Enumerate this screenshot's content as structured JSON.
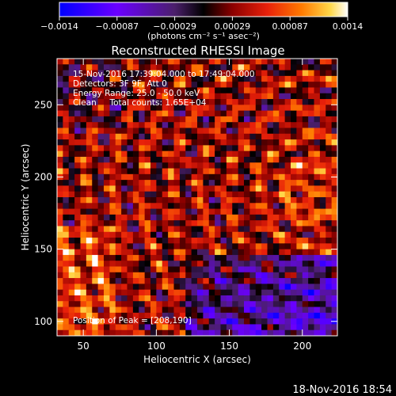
{
  "chart_data": {
    "type": "heatmap",
    "title": "Reconstructed RHESSI Image",
    "xlabel": "Heliocentric X (arcsec)",
    "ylabel": "Heliocentric Y (arcsec)",
    "xlim": [
      32,
      224
    ],
    "ylim": [
      90,
      282
    ],
    "x_ticks": [
      50,
      100,
      150,
      200
    ],
    "y_ticks": [
      100,
      150,
      200,
      250
    ],
    "colorbar": {
      "label": "(photons cm⁻² s⁻¹ asec⁻²)",
      "range": [
        -0.0014,
        0.0014
      ],
      "ticks": [
        "−0.0014",
        "−0.00087",
        "−0.00029",
        "0.00029",
        "0.00087",
        "0.0014"
      ],
      "colormap": [
        "#0000ff",
        "#6a00ff",
        "#4b1f6b",
        "#000000",
        "#8b0000",
        "#e8200a",
        "#ff7a00",
        "#ffd84a",
        "#ffffff"
      ]
    },
    "annotations": [
      "15-Nov-2016 17:39:04.000 to 17:49:04.000",
      "Detectors: 3F 9F, Att 0",
      "Energy Range: 25.0 - 50.0 keV",
      "Clean     Total counts: 1.65E+04"
    ],
    "peak_label": "Position of Peak = [208,190]",
    "peak": [
      208,
      190
    ]
  },
  "footer": {
    "timestamp": "18-Nov-2016 18:54"
  }
}
